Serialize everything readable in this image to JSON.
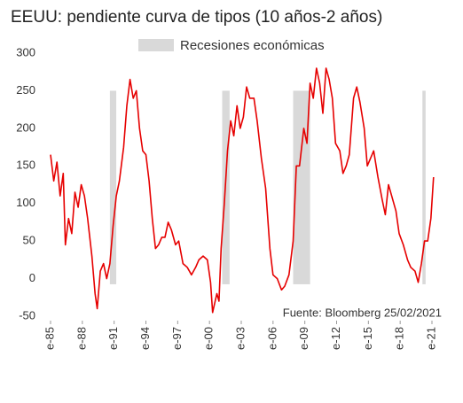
{
  "chart_data": {
    "type": "line",
    "title": "EEUU: pendiente curva de tipos (10 años-2 años)",
    "annotation": "Fuente: Bloomberg 25/02/2021",
    "legend_label": "Recesiones económicas",
    "recession_color": "#d9d9d9",
    "recessions": [
      [
        1990.6,
        1991.2
      ],
      [
        2001.2,
        2001.9
      ],
      [
        2007.9,
        2009.5
      ],
      [
        2020.1,
        2020.4
      ]
    ],
    "x": [
      1985.0,
      1985.3,
      1985.6,
      1985.9,
      1986.2,
      1986.4,
      1986.7,
      1987.0,
      1987.3,
      1987.6,
      1987.9,
      1988.2,
      1988.5,
      1988.9,
      1989.2,
      1989.4,
      1989.7,
      1990.0,
      1990.3,
      1990.6,
      1990.9,
      1991.2,
      1991.5,
      1991.9,
      1992.2,
      1992.5,
      1992.8,
      1993.1,
      1993.4,
      1993.7,
      1994.0,
      1994.3,
      1994.6,
      1994.9,
      1995.2,
      1995.5,
      1995.8,
      1996.1,
      1996.4,
      1996.8,
      1997.1,
      1997.5,
      1997.9,
      1998.3,
      1998.7,
      1999.0,
      1999.4,
      1999.8,
      2000.1,
      2000.3,
      2000.7,
      2000.9,
      2001.1,
      2001.4,
      2001.7,
      2002.0,
      2002.3,
      2002.6,
      2002.9,
      2003.2,
      2003.5,
      2003.8,
      2004.2,
      2004.5,
      2004.9,
      2005.3,
      2005.7,
      2006.0,
      2006.4,
      2006.8,
      2007.1,
      2007.5,
      2007.9,
      2008.2,
      2008.5,
      2008.9,
      2009.2,
      2009.5,
      2009.8,
      2010.1,
      2010.4,
      2010.7,
      2011.0,
      2011.3,
      2011.6,
      2011.9,
      2012.3,
      2012.6,
      2012.9,
      2013.2,
      2013.6,
      2013.9,
      2014.2,
      2014.6,
      2014.9,
      2015.2,
      2015.5,
      2015.9,
      2016.3,
      2016.6,
      2016.9,
      2017.2,
      2017.6,
      2017.9,
      2018.3,
      2018.7,
      2019.0,
      2019.4,
      2019.7,
      2020.0,
      2020.3,
      2020.6,
      2020.9,
      2021.15
    ],
    "series": [
      {
        "color": "#e60000",
        "values": [
          165,
          130,
          155,
          110,
          140,
          45,
          80,
          60,
          115,
          95,
          125,
          110,
          80,
          30,
          -20,
          -40,
          10,
          20,
          0,
          20,
          70,
          110,
          130,
          175,
          230,
          265,
          240,
          250,
          200,
          170,
          165,
          130,
          80,
          40,
          45,
          55,
          55,
          75,
          65,
          45,
          50,
          20,
          15,
          5,
          15,
          25,
          30,
          25,
          -5,
          -45,
          -20,
          -30,
          40,
          100,
          170,
          210,
          190,
          230,
          200,
          215,
          255,
          240,
          240,
          210,
          160,
          120,
          40,
          5,
          0,
          -15,
          -10,
          5,
          50,
          150,
          150,
          200,
          180,
          260,
          240,
          280,
          260,
          220,
          280,
          265,
          240,
          180,
          170,
          140,
          150,
          165,
          240,
          255,
          235,
          200,
          150,
          160,
          170,
          135,
          105,
          85,
          125,
          110,
          90,
          60,
          45,
          25,
          15,
          10,
          -5,
          20,
          50,
          50,
          80,
          135
        ]
      }
    ],
    "xlim": [
      1984.9,
      2021.4
    ],
    "xticks": [
      {
        "value": 1985,
        "label": "e-85"
      },
      {
        "value": 1988,
        "label": "e-88"
      },
      {
        "value": 1991,
        "label": "e-91"
      },
      {
        "value": 1994,
        "label": "e-94"
      },
      {
        "value": 1997,
        "label": "e-97"
      },
      {
        "value": 2000,
        "label": "e-00"
      },
      {
        "value": 2003,
        "label": "e-03"
      },
      {
        "value": 2006,
        "label": "e-06"
      },
      {
        "value": 2009,
        "label": "e-09"
      },
      {
        "value": 2012,
        "label": "e-12"
      },
      {
        "value": 2015,
        "label": "e-15"
      },
      {
        "value": 2018,
        "label": "e-18"
      },
      {
        "value": 2021,
        "label": "e-21"
      }
    ],
    "ylim": [
      -50,
      300
    ],
    "yticks": [
      -50,
      0,
      50,
      100,
      150,
      200,
      250,
      300
    ],
    "grid": false
  }
}
